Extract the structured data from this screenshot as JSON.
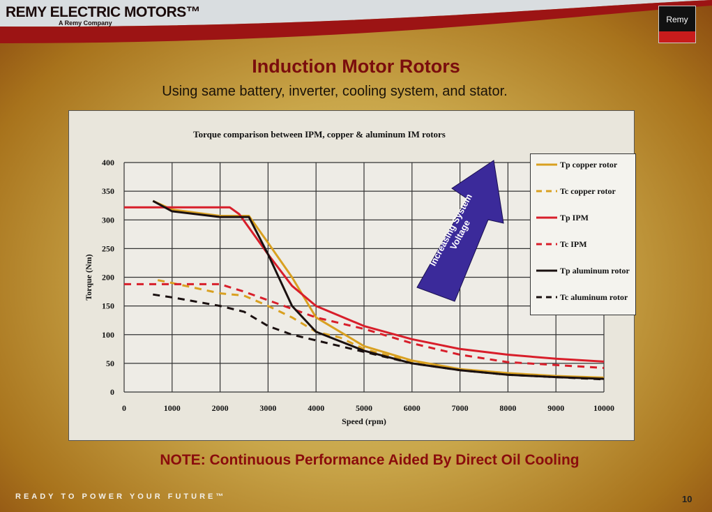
{
  "header": {
    "brand": "REMY ELECTRIC MOTORS™",
    "brand_sub": "A Remy Company",
    "badge": "Remy"
  },
  "slide": {
    "title": "Induction Motor Rotors",
    "subtitle": "Using same battery, inverter, cooling system, and stator.",
    "note": "NOTE: Continuous Performance Aided By Direct Oil Cooling",
    "tagline": "READY TO POWER YOUR FUTURE™",
    "page": "10"
  },
  "chart_data": {
    "type": "line",
    "title": "Torque comparison between IPM, copper & aluminum IM rotors",
    "xlabel": "Speed (rpm)",
    "ylabel": "Torque (Nm)",
    "xlim": [
      0,
      10000
    ],
    "ylim": [
      0,
      400
    ],
    "xticks": [
      0,
      1000,
      2000,
      3000,
      4000,
      5000,
      6000,
      7000,
      8000,
      9000,
      10000
    ],
    "yticks": [
      0,
      50,
      100,
      150,
      200,
      250,
      300,
      350,
      400
    ],
    "grid": true,
    "legend_position": "right",
    "annotation": "Increasing System Voltage",
    "series": [
      {
        "name": "Tp copper rotor",
        "color": "#d9a020",
        "dash": false,
        "x": [
          600,
          1000,
          2000,
          2600,
          3000,
          3500,
          4000,
          5000,
          6000,
          7000,
          8000,
          9000,
          10000
        ],
        "y": [
          333,
          318,
          307,
          307,
          260,
          200,
          130,
          80,
          55,
          40,
          33,
          28,
          25
        ]
      },
      {
        "name": "Tc copper rotor",
        "color": "#d9a020",
        "dash": true,
        "x": [
          700,
          1000,
          2000,
          2500,
          3000,
          3500,
          4000,
          4500,
          5000,
          6000,
          7000,
          8000,
          10000
        ],
        "y": [
          195,
          190,
          172,
          168,
          150,
          130,
          105,
          95,
          75,
          52,
          38,
          30,
          23
        ]
      },
      {
        "name": "Tp IPM",
        "color": "#d81e2a",
        "dash": false,
        "x": [
          0,
          800,
          2200,
          2400,
          3000,
          3500,
          4000,
          5000,
          6000,
          7000,
          8000,
          9000,
          10000
        ],
        "y": [
          322,
          322,
          322,
          310,
          240,
          185,
          150,
          115,
          92,
          75,
          65,
          58,
          53
        ]
      },
      {
        "name": "Tc IPM",
        "color": "#d81e2a",
        "dash": true,
        "x": [
          0,
          1000,
          2000,
          2500,
          3000,
          4000,
          5000,
          6000,
          7000,
          8000,
          9000,
          10000
        ],
        "y": [
          188,
          188,
          188,
          175,
          160,
          130,
          110,
          85,
          65,
          52,
          47,
          42
        ]
      },
      {
        "name": "Tp aluminum rotor",
        "color": "#1a1010",
        "dash": false,
        "x": [
          600,
          1000,
          2000,
          2600,
          3000,
          3500,
          4000,
          5000,
          6000,
          7000,
          8000,
          9000,
          10000
        ],
        "y": [
          333,
          315,
          305,
          305,
          240,
          150,
          105,
          72,
          50,
          38,
          30,
          26,
          23
        ]
      },
      {
        "name": "Tc aluminum rotor",
        "color": "#1a1010",
        "dash": true,
        "x": [
          600,
          1000,
          2000,
          2500,
          3000,
          3500,
          4000,
          5000,
          6000,
          7000,
          8000,
          10000
        ],
        "y": [
          170,
          165,
          150,
          140,
          115,
          100,
          90,
          70,
          50,
          38,
          30,
          22
        ]
      }
    ]
  }
}
